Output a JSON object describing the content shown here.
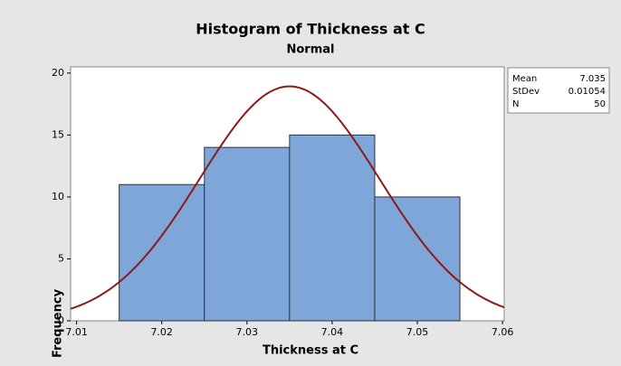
{
  "chart_data": {
    "type": "histogram",
    "title": "Histogram of Thickness at C",
    "subtitle": "Normal",
    "x_label": "Thickness at C",
    "y_label": "Frequency",
    "bins": [
      7.015,
      7.025,
      7.035,
      7.045,
      7.055
    ],
    "values": [
      11,
      14,
      15,
      10
    ],
    "color": "#7ea6d8",
    "curve_color": "#8b1a1a",
    "xlim": [
      7.0093,
      7.0602
    ],
    "xticks": [
      7.01,
      7.02,
      7.03,
      7.04,
      7.05,
      7.06
    ],
    "ylim": [
      0,
      20.5
    ],
    "yticks": [
      0,
      5,
      10,
      15,
      20
    ],
    "stats": [
      {
        "label": "Mean",
        "value": 7.035
      },
      {
        "label": "StDev",
        "value": 0.01054
      },
      {
        "label": "N",
        "value": 50
      }
    ]
  }
}
